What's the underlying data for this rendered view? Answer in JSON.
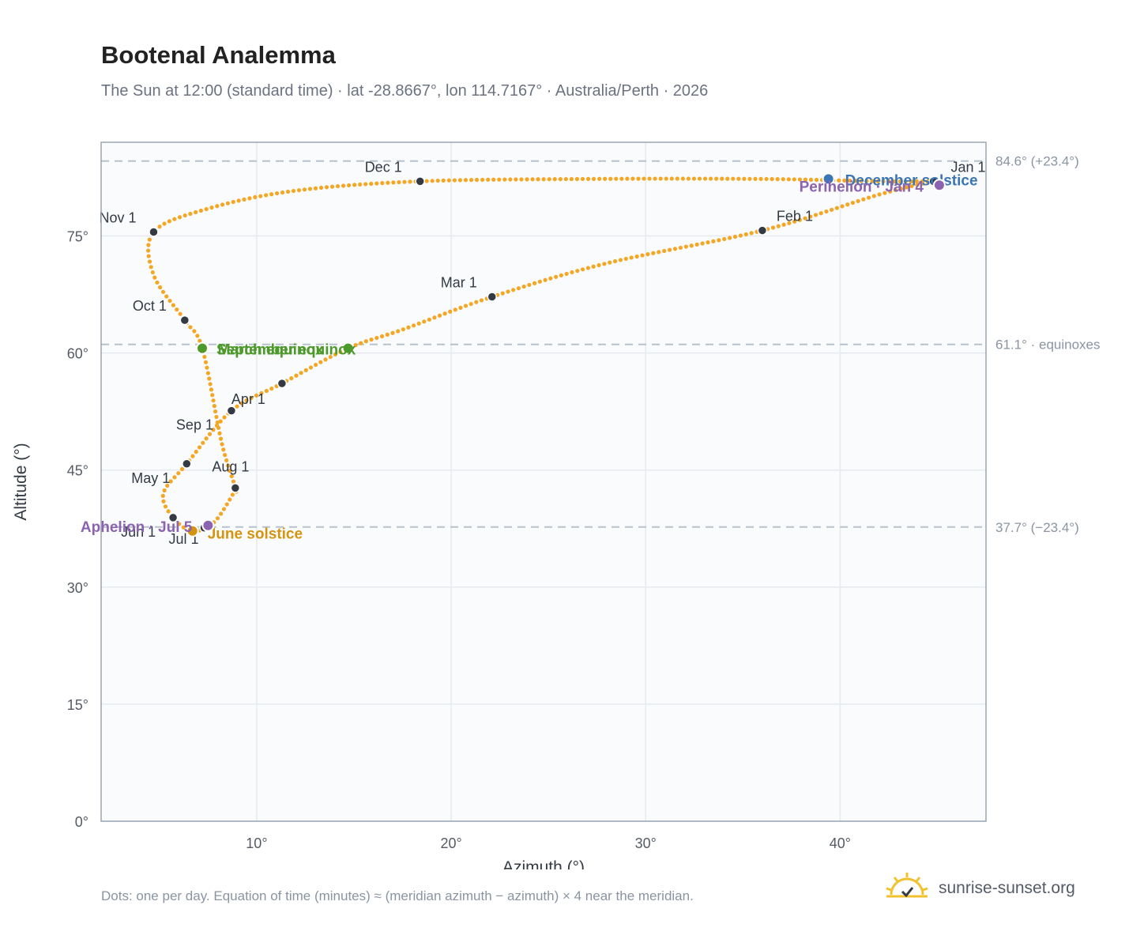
{
  "header": {
    "title": "Bootenal Analemma",
    "subtitle": "The Sun at 12:00 (standard time) · lat -28.8667°, lon 114.7167° · Australia/Perth · 2026"
  },
  "footer": {
    "note": "Dots: one per day. Equation of time (minutes) ≈ (meridian azimuth − azimuth) × 4 near the meridian.",
    "brand": "sunrise-sunset.org",
    "brand_icon": "sun-horizon-icon"
  },
  "colors": {
    "curve": "#f5a623",
    "marker": "#333a44",
    "equinox": "#4d9a2a",
    "december_solstice": "#3a75b6",
    "june_solstice": "#d4940f",
    "apsis": "#8b63b0",
    "reference_line": "#b8c2cc",
    "grid": "#e6eaee",
    "plot_background": "#f9fbfd",
    "frame": "#9aa6b2"
  },
  "chart_data": {
    "type": "scatter",
    "xlabel": "Azimuth (°)",
    "ylabel": "Altitude (°)",
    "xlim": [
      2,
      47.5
    ],
    "ylim": [
      0,
      87
    ],
    "xticks": [
      10,
      20,
      30,
      40
    ],
    "yticks": [
      0,
      15,
      30,
      45,
      60,
      75
    ],
    "xtick_labels": [
      "10°",
      "20°",
      "30°",
      "40°"
    ],
    "ytick_labels": [
      "0°",
      "15°",
      "30°",
      "45°",
      "60°",
      "75°"
    ],
    "grid": true,
    "legend": "none",
    "path_knots": [
      {
        "az": 44.8,
        "alt": 82.0
      },
      {
        "az": 42.0,
        "alt": 80.3
      },
      {
        "az": 36.0,
        "alt": 75.7
      },
      {
        "az": 28.0,
        "alt": 71.5
      },
      {
        "az": 22.1,
        "alt": 67.2
      },
      {
        "az": 17.5,
        "alt": 63.0
      },
      {
        "az": 14.7,
        "alt": 60.6
      },
      {
        "az": 11.3,
        "alt": 56.1
      },
      {
        "az": 8.7,
        "alt": 52.6
      },
      {
        "az": 6.4,
        "alt": 45.8
      },
      {
        "az": 5.2,
        "alt": 42.0
      },
      {
        "az": 5.7,
        "alt": 38.9
      },
      {
        "az": 6.7,
        "alt": 37.2
      },
      {
        "az": 7.8,
        "alt": 38.3
      },
      {
        "az": 8.8,
        "alt": 42.0
      },
      {
        "az": 8.9,
        "alt": 42.7
      },
      {
        "az": 8.2,
        "alt": 48.5
      },
      {
        "az": 7.2,
        "alt": 60.6
      },
      {
        "az": 6.3,
        "alt": 64.2
      },
      {
        "az": 4.7,
        "alt": 70.0
      },
      {
        "az": 4.7,
        "alt": 75.5
      },
      {
        "az": 7.5,
        "alt": 78.5
      },
      {
        "az": 12.0,
        "alt": 80.8
      },
      {
        "az": 18.4,
        "alt": 82.0
      },
      {
        "az": 27.0,
        "alt": 82.3
      },
      {
        "az": 36.0,
        "alt": 82.3
      },
      {
        "az": 42.0,
        "alt": 82.0
      },
      {
        "az": 44.8,
        "alt": 82.0
      }
    ],
    "reference_lines": [
      {
        "alt": 84.6,
        "label": "84.6° (+23.4°)"
      },
      {
        "alt": 61.1,
        "label": "61.1° · equinoxes"
      },
      {
        "alt": 37.7,
        "label": "37.7° (−23.4°)"
      }
    ],
    "month_markers": [
      {
        "label": "Jan 1",
        "az": 44.8,
        "alt": 82.0
      },
      {
        "label": "Feb 1",
        "az": 36.0,
        "alt": 75.7
      },
      {
        "label": "Mar 1",
        "az": 22.1,
        "alt": 67.2
      },
      {
        "label": "Apr 1",
        "az": 11.3,
        "alt": 56.1
      },
      {
        "label": "May 1",
        "az": 6.4,
        "alt": 45.8
      },
      {
        "label": "Jun 1",
        "az": 5.7,
        "alt": 38.9
      },
      {
        "label": "Jul 1",
        "az": 7.3,
        "alt": 37.6
      },
      {
        "label": "Aug 1",
        "az": 8.9,
        "alt": 42.7
      },
      {
        "label": "Sep 1",
        "az": 8.7,
        "alt": 52.6
      },
      {
        "label": "Oct 1",
        "az": 6.3,
        "alt": 64.2
      },
      {
        "label": "Nov 1",
        "az": 4.7,
        "alt": 75.5
      },
      {
        "label": "Dec 1",
        "az": 18.4,
        "alt": 82.0
      }
    ],
    "special_points": [
      {
        "label": "March equinox",
        "az": 14.7,
        "alt": 60.6,
        "kind": "equinox"
      },
      {
        "label": "September equinox",
        "az": 7.2,
        "alt": 60.6,
        "kind": "equinox"
      },
      {
        "label": "June solstice",
        "az": 6.7,
        "alt": 37.2,
        "kind": "june_solstice"
      },
      {
        "label": "December solstice",
        "az": 39.4,
        "alt": 82.3,
        "kind": "december_solstice"
      },
      {
        "label": "Perihelion · Jan 4",
        "az": 45.1,
        "alt": 81.5,
        "kind": "apsis"
      },
      {
        "label": "Aphelion · Jul 5",
        "az": 7.5,
        "alt": 37.9,
        "kind": "apsis"
      }
    ]
  }
}
